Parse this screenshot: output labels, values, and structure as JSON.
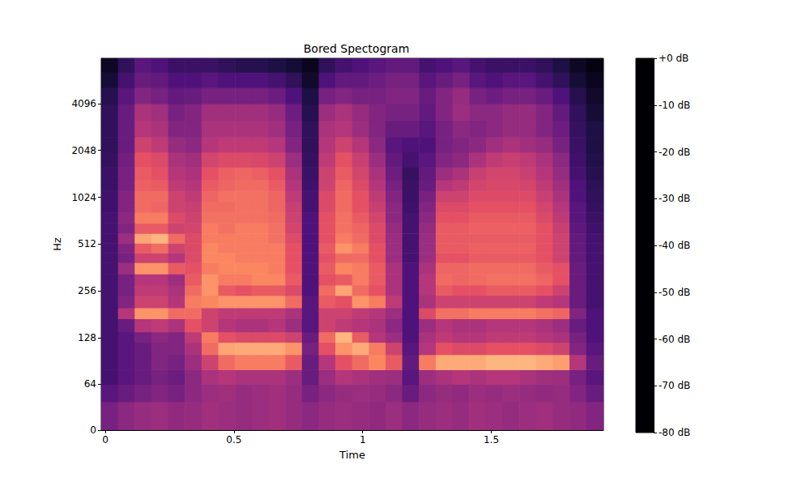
{
  "chart_data": {
    "type": "heatmap",
    "title": "Bored Spectogram",
    "x_label": "Time",
    "y_label": "Hz",
    "log": "y",
    "color": "magma",
    "xlim": [
      -0.016,
      1.936
    ],
    "xticks": [
      0,
      0.5,
      1,
      1.5
    ],
    "ylim": [
      0,
      8000
    ],
    "yticks": [
      0,
      64,
      128,
      256,
      512,
      1024,
      2048,
      4096
    ],
    "time_edges": [
      -0.016,
      0.049,
      0.114,
      0.179,
      0.244,
      0.309,
      0.374,
      0.439,
      0.504,
      0.569,
      0.634,
      0.699,
      0.764,
      0.829,
      0.894,
      0.959,
      1.024,
      1.089,
      1.154,
      1.219,
      1.284,
      1.349,
      1.414,
      1.479,
      1.544,
      1.609,
      1.674,
      1.739,
      1.804,
      1.869,
      1.936
    ],
    "freq_edges": [
      0,
      40,
      64,
      80,
      100,
      120,
      140,
      170,
      200,
      240,
      280,
      330,
      390,
      450,
      520,
      600,
      700,
      820,
      960,
      1130,
      1330,
      1600,
      2000,
      2500,
      3200,
      4096,
      5200,
      6500,
      8000
    ],
    "values": [
      [
        -52,
        -48,
        -46,
        -45,
        -47,
        -46,
        -44,
        -45,
        -46,
        -45,
        -44,
        -46,
        -48,
        -46,
        -45,
        -46,
        -47,
        -45,
        -48,
        -46,
        -45,
        -46,
        -44,
        -45,
        -46,
        -45,
        -44,
        -46,
        -47,
        -50
      ],
      [
        -58,
        -55,
        -52,
        -50,
        -52,
        -48,
        -45,
        -44,
        -46,
        -45,
        -44,
        -46,
        -52,
        -48,
        -46,
        -45,
        -46,
        -48,
        -55,
        -48,
        -46,
        -47,
        -45,
        -46,
        -45,
        -46,
        -47,
        -46,
        -50,
        -55
      ],
      [
        -62,
        -58,
        -55,
        -52,
        -54,
        -48,
        -42,
        -40,
        -42,
        -42,
        -42,
        -45,
        -55,
        -45,
        -40,
        -42,
        -44,
        -45,
        -58,
        -45,
        -42,
        -40,
        -42,
        -40,
        -40,
        -42,
        -44,
        -45,
        -52,
        -58
      ],
      [
        -62,
        -58,
        -55,
        -50,
        -52,
        -45,
        -35,
        -25,
        -22,
        -22,
        -22,
        -28,
        -55,
        -40,
        -30,
        -25,
        -20,
        -28,
        -56,
        -22,
        -14,
        -14,
        -14,
        -12,
        -12,
        -12,
        -14,
        -16,
        -40,
        -55
      ],
      [
        -62,
        -58,
        -55,
        -50,
        -50,
        -42,
        -25,
        -15,
        -14,
        -14,
        -14,
        -18,
        -52,
        -30,
        -18,
        -14,
        -22,
        -35,
        -58,
        -40,
        -30,
        -32,
        -32,
        -30,
        -30,
        -30,
        -32,
        -35,
        -50,
        -58
      ],
      [
        -62,
        -58,
        -52,
        -48,
        -50,
        -38,
        -22,
        -30,
        -32,
        -32,
        -32,
        -35,
        -55,
        -25,
        -12,
        -28,
        -40,
        -45,
        -60,
        -42,
        -38,
        -40,
        -40,
        -38,
        -38,
        -38,
        -40,
        -42,
        -52,
        -60
      ],
      [
        -62,
        -55,
        -40,
        -38,
        -42,
        -30,
        -35,
        -40,
        -42,
        -42,
        -40,
        -45,
        -58,
        -35,
        -38,
        -40,
        -42,
        -48,
        -60,
        -45,
        -40,
        -42,
        -42,
        -40,
        -40,
        -40,
        -42,
        -45,
        -55,
        -60
      ],
      [
        -62,
        -40,
        -18,
        -18,
        -25,
        -25,
        -35,
        -38,
        -38,
        -38,
        -38,
        -42,
        -58,
        -35,
        -35,
        -38,
        -40,
        -45,
        -60,
        -32,
        -24,
        -24,
        -22,
        -22,
        -22,
        -22,
        -24,
        -26,
        -50,
        -60
      ],
      [
        -62,
        -50,
        -35,
        -35,
        -40,
        -22,
        -20,
        -18,
        -18,
        -18,
        -18,
        -25,
        -58,
        -28,
        -30,
        -18,
        -22,
        -38,
        -60,
        -42,
        -35,
        -35,
        -35,
        -35,
        -35,
        -35,
        -38,
        -40,
        -55,
        -62
      ],
      [
        -62,
        -52,
        -38,
        -38,
        -42,
        -25,
        -18,
        -28,
        -30,
        -28,
        -28,
        -32,
        -60,
        -25,
        -15,
        -25,
        -30,
        -42,
        -60,
        -40,
        -28,
        -30,
        -30,
        -28,
        -28,
        -28,
        -30,
        -35,
        -55,
        -62
      ],
      [
        -62,
        -52,
        -40,
        -40,
        -45,
        -28,
        -18,
        -22,
        -22,
        -20,
        -20,
        -28,
        -60,
        -30,
        -28,
        -22,
        -28,
        -42,
        -60,
        -40,
        -25,
        -26,
        -25,
        -24,
        -24,
        -24,
        -26,
        -30,
        -55,
        -62
      ],
      [
        -62,
        -45,
        -18,
        -18,
        -28,
        -30,
        -22,
        -20,
        -20,
        -20,
        -22,
        -30,
        -60,
        -28,
        -20,
        -22,
        -28,
        -42,
        -60,
        -42,
        -26,
        -26,
        -25,
        -25,
        -25,
        -25,
        -28,
        -30,
        -55,
        -62
      ],
      [
        -62,
        -52,
        -35,
        -35,
        -40,
        -32,
        -20,
        -20,
        -22,
        -22,
        -22,
        -30,
        -60,
        -30,
        -25,
        -25,
        -30,
        -45,
        -62,
        -45,
        -30,
        -30,
        -28,
        -28,
        -28,
        -28,
        -30,
        -35,
        -56,
        -62
      ],
      [
        -62,
        -50,
        -28,
        -25,
        -35,
        -32,
        -20,
        -22,
        -22,
        -22,
        -22,
        -30,
        -60,
        -28,
        -18,
        -22,
        -30,
        -45,
        -62,
        -45,
        -28,
        -28,
        -27,
        -27,
        -27,
        -27,
        -30,
        -35,
        -56,
        -62
      ],
      [
        -62,
        -45,
        -15,
        -12,
        -25,
        -32,
        -22,
        -22,
        -22,
        -22,
        -24,
        -32,
        -60,
        -30,
        -22,
        -25,
        -32,
        -45,
        -62,
        -45,
        -28,
        -28,
        -28,
        -28,
        -28,
        -28,
        -30,
        -35,
        -56,
        -62
      ],
      [
        -62,
        -50,
        -28,
        -28,
        -35,
        -34,
        -22,
        -24,
        -22,
        -22,
        -24,
        -34,
        -60,
        -30,
        -24,
        -26,
        -32,
        -46,
        -62,
        -46,
        -28,
        -28,
        -27,
        -27,
        -27,
        -27,
        -30,
        -36,
        -57,
        -63
      ],
      [
        -62,
        -48,
        -22,
        -22,
        -32,
        -35,
        -24,
        -24,
        -24,
        -24,
        -25,
        -35,
        -60,
        -30,
        -24,
        -28,
        -34,
        -48,
        -62,
        -48,
        -30,
        -30,
        -28,
        -28,
        -28,
        -28,
        -32,
        -38,
        -58,
        -64
      ],
      [
        -63,
        -50,
        -25,
        -26,
        -35,
        -36,
        -25,
        -25,
        -24,
        -24,
        -26,
        -36,
        -62,
        -32,
        -25,
        -30,
        -36,
        -48,
        -63,
        -50,
        -32,
        -32,
        -30,
        -30,
        -30,
        -30,
        -34,
        -40,
        -58,
        -65
      ],
      [
        -63,
        -50,
        -25,
        -25,
        -35,
        -38,
        -26,
        -24,
        -24,
        -24,
        -26,
        -38,
        -62,
        -32,
        -25,
        -30,
        -38,
        -50,
        -64,
        -52,
        -35,
        -35,
        -32,
        -32,
        -32,
        -32,
        -36,
        -42,
        -60,
        -66
      ],
      [
        -64,
        -52,
        -27,
        -28,
        -38,
        -40,
        -28,
        -26,
        -25,
        -25,
        -28,
        -40,
        -63,
        -35,
        -26,
        -32,
        -40,
        -52,
        -64,
        -55,
        -40,
        -38,
        -34,
        -33,
        -33,
        -34,
        -38,
        -44,
        -60,
        -67
      ],
      [
        -64,
        -52,
        -28,
        -30,
        -40,
        -42,
        -30,
        -27,
        -26,
        -27,
        -30,
        -42,
        -64,
        -35,
        -28,
        -34,
        -42,
        -54,
        -65,
        -56,
        -45,
        -42,
        -36,
        -34,
        -34,
        -36,
        -40,
        -46,
        -62,
        -68
      ],
      [
        -65,
        -53,
        -30,
        -32,
        -42,
        -44,
        -34,
        -32,
        -32,
        -33,
        -35,
        -45,
        -65,
        -38,
        -30,
        -36,
        -45,
        -56,
        -62,
        -58,
        -50,
        -48,
        -42,
        -38,
        -36,
        -38,
        -42,
        -48,
        -63,
        -69
      ],
      [
        -66,
        -55,
        -35,
        -38,
        -46,
        -48,
        -40,
        -38,
        -38,
        -38,
        -40,
        -50,
        -66,
        -40,
        -35,
        -40,
        -48,
        -58,
        -60,
        -60,
        -52,
        -50,
        -48,
        -44,
        -42,
        -44,
        -46,
        -52,
        -64,
        -70
      ],
      [
        -66,
        -55,
        -40,
        -42,
        -50,
        -50,
        -42,
        -42,
        -42,
        -42,
        -44,
        -52,
        -66,
        -42,
        -40,
        -45,
        -50,
        -55,
        -55,
        -58,
        -52,
        -48,
        -50,
        -48,
        -46,
        -46,
        -50,
        -54,
        -65,
        -70
      ],
      [
        -66,
        -55,
        -42,
        -44,
        -52,
        -50,
        -44,
        -44,
        -44,
        -44,
        -46,
        -54,
        -68,
        -45,
        -42,
        -46,
        -50,
        -52,
        -52,
        -56,
        -50,
        -45,
        -48,
        -48,
        -46,
        -46,
        -50,
        -56,
        -66,
        -72
      ],
      [
        -68,
        -58,
        -50,
        -52,
        -56,
        -55,
        -52,
        -52,
        -52,
        -52,
        -54,
        -60,
        -70,
        -52,
        -50,
        -52,
        -52,
        -50,
        -50,
        -55,
        -50,
        -46,
        -52,
        -54,
        -52,
        -52,
        -55,
        -60,
        -68,
        -74
      ],
      [
        -72,
        -62,
        -55,
        -56,
        -60,
        -60,
        -58,
        -60,
        -60,
        -60,
        -62,
        -66,
        -74,
        -60,
        -56,
        -56,
        -54,
        -52,
        -52,
        -58,
        -55,
        -52,
        -58,
        -60,
        -58,
        -58,
        -62,
        -66,
        -72,
        -76
      ],
      [
        -75,
        -66,
        -58,
        -60,
        -64,
        -64,
        -64,
        -66,
        -68,
        -68,
        -70,
        -72,
        -76,
        -66,
        -62,
        -60,
        -58,
        -56,
        -56,
        -62,
        -60,
        -58,
        -62,
        -64,
        -64,
        -64,
        -66,
        -70,
        -75,
        -78
      ]
    ],
    "colorbar": {
      "range": [
        -80,
        0
      ],
      "ticks": [
        {
          "value": 0,
          "label": "+0 dB"
        },
        {
          "value": -10,
          "label": "-10 dB"
        },
        {
          "value": -20,
          "label": "-20 dB"
        },
        {
          "value": -30,
          "label": "-30 dB"
        },
        {
          "value": -40,
          "label": "-40 dB"
        },
        {
          "value": -50,
          "label": "-50 dB"
        },
        {
          "value": -60,
          "label": "-60 dB"
        },
        {
          "value": -70,
          "label": "-70 dB"
        },
        {
          "value": -80,
          "label": "-80 dB"
        }
      ]
    }
  }
}
